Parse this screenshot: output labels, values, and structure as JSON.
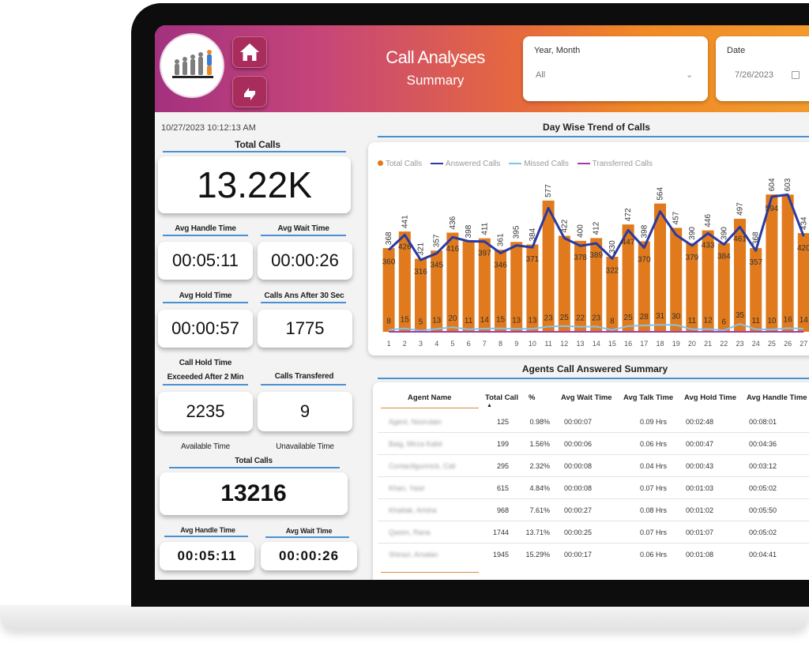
{
  "header": {
    "title": "Call Analyses",
    "subtitle": "Summary",
    "home_icon": "home-icon",
    "refresh_icon": "refresh-icon",
    "logo_icon": "evolution-logo"
  },
  "slicers": {
    "year_month": {
      "label": "Year, Month",
      "value": "All"
    },
    "date": {
      "label": "Date",
      "value": "7/26/2023"
    }
  },
  "left": {
    "timestamp": "10/27/2023 10:12:13 AM",
    "total_calls_label": "Total Calls",
    "total_calls_value": "13.22K",
    "avg_handle_label": "Avg Handle Time",
    "avg_handle_value": "00:05:11",
    "avg_wait_label": "Avg Wait Time",
    "avg_wait_value": "00:00:26",
    "avg_hold_label": "Avg Hold Time",
    "avg_hold_value": "00:00:57",
    "calls_ans_label": "Calls Ans After 30 Sec",
    "calls_ans_value": "1775",
    "hold_exceeded_label_1": "Call Hold Time",
    "hold_exceeded_label_2": "Exceeded After 2 Min",
    "hold_exceeded_value": "2235",
    "transferred_label": "Calls Transfered",
    "transferred_value": "9",
    "available_label": "Available Time",
    "unavailable_label": "Unavailable Time",
    "total_calls2_label": "Total Calls",
    "total_calls2_value": "13216",
    "avg_handle2_label": "Avg Handle Time",
    "avg_handle2_value": "00:05:11",
    "avg_wait2_label": "Avg Wait Time",
    "avg_wait2_value": "00:00:26"
  },
  "chart_data": {
    "type": "bar",
    "title": "Day Wise Trend of Calls",
    "legend": [
      "Total Calls",
      "Answered Calls",
      "Missed Calls",
      "Transferred Calls"
    ],
    "legend_placement": "top-left",
    "colors": {
      "total": "#e07a1c",
      "answered": "#2b3a9e",
      "missed": "#7ec3ef",
      "transferred": "#a23aa8"
    },
    "categories": [
      "1",
      "2",
      "3",
      "4",
      "5",
      "6",
      "7",
      "8",
      "9",
      "10",
      "11",
      "12",
      "13",
      "14",
      "15",
      "16",
      "17",
      "18",
      "19",
      "20",
      "21",
      "22",
      "23",
      "24",
      "25",
      "26",
      "27"
    ],
    "series": [
      {
        "name": "Total Calls",
        "values": [
          368,
          441,
          321,
          357,
          436,
          398,
          411,
          361,
          395,
          384,
          577,
          422,
          400,
          412,
          330,
          472,
          398,
          564,
          457,
          390,
          446,
          390,
          497,
          368,
          604,
          603,
          434
        ]
      },
      {
        "name": "Answered Calls",
        "values": [
          360,
          426,
          316,
          345,
          416,
          398,
          397,
          346,
          380,
          371,
          544,
          412,
          378,
          389,
          322,
          447,
          370,
          529,
          426,
          379,
          433,
          384,
          461,
          357,
          594,
          603,
          420
        ]
      },
      {
        "name": "Missed Calls",
        "values": [
          8,
          15,
          5,
          13,
          20,
          11,
          14,
          15,
          13,
          13,
          23,
          25,
          22,
          23,
          8,
          25,
          28,
          31,
          30,
          11,
          12,
          6,
          35,
          11,
          10,
          16,
          14
        ]
      },
      {
        "name": "Transferred Calls",
        "values": [
          0,
          0,
          0,
          0,
          0,
          0,
          0,
          0,
          0,
          0,
          0,
          0,
          0,
          0,
          0,
          0,
          0,
          0,
          0,
          0,
          0,
          0,
          0,
          0,
          0,
          0,
          0
        ]
      }
    ],
    "answered_labels": [
      "360",
      "426",
      "316",
      "345",
      "416",
      "",
      "397",
      "346",
      "",
      "371",
      "",
      "",
      "378",
      "389",
      "322",
      "447",
      "370",
      "",
      "",
      "379",
      "433",
      "384",
      "461",
      "357",
      "594",
      "",
      "420"
    ],
    "missed_labels": [
      "8",
      "15",
      "5",
      "13",
      "20",
      "11",
      "14",
      "15",
      "13",
      "13",
      "23",
      "25",
      "22",
      "23",
      "8",
      "25",
      "28",
      "31",
      "30",
      "11",
      "12",
      "6",
      "35",
      "11",
      "10",
      "16",
      "14"
    ],
    "grid": false
  },
  "table": {
    "title": "Agents Call Answered Summary",
    "columns": [
      "Agent Name",
      "Total Call",
      "%",
      "Avg Wait Time",
      "Avg Talk Time",
      "Avg Hold Time",
      "Avg Handle Time"
    ],
    "rows": [
      {
        "agent": "Agent, Noorulain",
        "total": "125",
        "pct": "0.98%",
        "wait": "00:00:07",
        "talk": "0.09 Hrs",
        "hold": "00:02:48",
        "handle": "00:08:01"
      },
      {
        "agent": "Baig, Mirza Kabir",
        "total": "199",
        "pct": "1.56%",
        "wait": "00:00:06",
        "talk": "0.06 Hrs",
        "hold": "00:00:47",
        "handle": "00:04:36"
      },
      {
        "agent": "Contactlgunnick, Cali",
        "total": "295",
        "pct": "2.32%",
        "wait": "00:00:08",
        "talk": "0.04 Hrs",
        "hold": "00:00:43",
        "handle": "00:03:12"
      },
      {
        "agent": "Khan, Yasir",
        "total": "615",
        "pct": "4.84%",
        "wait": "00:00:08",
        "talk": "0.07 Hrs",
        "hold": "00:01:03",
        "handle": "00:05:02"
      },
      {
        "agent": "Khattak, Arisha",
        "total": "968",
        "pct": "7.61%",
        "wait": "00:00:27",
        "talk": "0.08 Hrs",
        "hold": "00:01:02",
        "handle": "00:05:50"
      },
      {
        "agent": "Qasim, Rana",
        "total": "1744",
        "pct": "13.71%",
        "wait": "00:00:25",
        "talk": "0.07 Hrs",
        "hold": "00:01:07",
        "handle": "00:05:02"
      },
      {
        "agent": "Shirazi, Arsalan",
        "total": "1945",
        "pct": "15.29%",
        "wait": "00:00:17",
        "talk": "0.06 Hrs",
        "hold": "00:01:08",
        "handle": "00:04:41"
      }
    ]
  }
}
